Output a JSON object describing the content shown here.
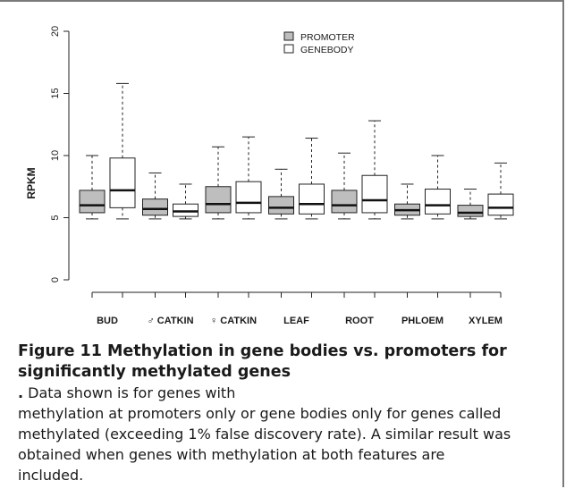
{
  "chart_data": {
    "type": "boxplot",
    "title": "",
    "ylabel": "RPKM",
    "xlabel": "",
    "ylim": [
      0,
      20
    ],
    "yticks": [
      0,
      5,
      10,
      15,
      20
    ],
    "grid": false,
    "legend": {
      "placement": "top-center",
      "entries": [
        {
          "label": "PROMOTER",
          "color": "#bebebe"
        },
        {
          "label": "GENEBODY",
          "color": "#ffffff"
        }
      ]
    },
    "categories": [
      "BUD",
      "♂ CATKIN",
      "♀ CATKIN",
      "LEAF",
      "ROOT",
      "PHLOEM",
      "XYLEM"
    ],
    "series": [
      {
        "name": "PROMOTER",
        "color": "#bebebe",
        "boxes": [
          {
            "whisker_low": 4.9,
            "q1": 5.4,
            "median": 6.0,
            "q3": 7.2,
            "whisker_high": 10.0
          },
          {
            "whisker_low": 4.9,
            "q1": 5.2,
            "median": 5.7,
            "q3": 6.5,
            "whisker_high": 8.6
          },
          {
            "whisker_low": 4.9,
            "q1": 5.4,
            "median": 6.1,
            "q3": 7.5,
            "whisker_high": 10.7
          },
          {
            "whisker_low": 4.9,
            "q1": 5.3,
            "median": 5.8,
            "q3": 6.7,
            "whisker_high": 8.9
          },
          {
            "whisker_low": 4.9,
            "q1": 5.4,
            "median": 6.0,
            "q3": 7.2,
            "whisker_high": 10.2
          },
          {
            "whisker_low": 4.9,
            "q1": 5.2,
            "median": 5.6,
            "q3": 6.1,
            "whisker_high": 7.7
          },
          {
            "whisker_low": 4.9,
            "q1": 5.1,
            "median": 5.4,
            "q3": 6.0,
            "whisker_high": 7.3
          }
        ]
      },
      {
        "name": "GENEBODY",
        "color": "#ffffff",
        "boxes": [
          {
            "whisker_low": 4.9,
            "q1": 5.8,
            "median": 7.2,
            "q3": 9.8,
            "whisker_high": 15.8
          },
          {
            "whisker_low": 4.9,
            "q1": 5.1,
            "median": 5.5,
            "q3": 6.1,
            "whisker_high": 7.7
          },
          {
            "whisker_low": 4.9,
            "q1": 5.4,
            "median": 6.2,
            "q3": 7.9,
            "whisker_high": 11.5
          },
          {
            "whisker_low": 4.9,
            "q1": 5.3,
            "median": 6.1,
            "q3": 7.7,
            "whisker_high": 11.4
          },
          {
            "whisker_low": 4.9,
            "q1": 5.4,
            "median": 6.4,
            "q3": 8.4,
            "whisker_high": 12.8
          },
          {
            "whisker_low": 4.9,
            "q1": 5.3,
            "median": 6.0,
            "q3": 7.3,
            "whisker_high": 10.0
          },
          {
            "whisker_low": 4.9,
            "q1": 5.2,
            "median": 5.8,
            "q3": 6.9,
            "whisker_high": 9.4
          }
        ]
      }
    ]
  },
  "caption": {
    "figure_label": "Figure 11",
    "title": "Methylation in gene bodies vs. promoters for significantly methylated genes",
    "title_end": ".",
    "lines": [
      "Data shown is for genes with",
      "methylation at promoters only or gene bodies only for genes called",
      "methylated (exceeding 1% false discovery rate). A similar result was",
      "obtained when genes with methylation at both features are",
      "included."
    ]
  }
}
